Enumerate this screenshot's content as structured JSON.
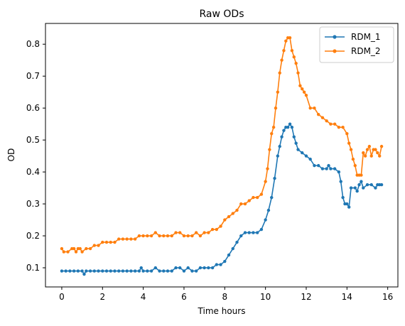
{
  "chart_data": {
    "type": "line",
    "title": "Raw ODs",
    "xlabel": "Time hours",
    "ylabel": "OD",
    "xlim": [
      -0.8,
      16.5
    ],
    "ylim": [
      0.04,
      0.865
    ],
    "xticks": [
      0,
      2,
      4,
      6,
      8,
      10,
      12,
      14,
      16
    ],
    "yticks": [
      0.1,
      0.2,
      0.3,
      0.4,
      0.5,
      0.6,
      0.7,
      0.8
    ],
    "legend": "top-right",
    "grid": false,
    "series": [
      {
        "name": "RDM_1",
        "color": "#1f77b4",
        "points": [
          [
            0,
            0.09
          ],
          [
            0.2,
            0.09
          ],
          [
            0.4,
            0.09
          ],
          [
            0.6,
            0.09
          ],
          [
            0.8,
            0.09
          ],
          [
            1.0,
            0.09
          ],
          [
            1.1,
            0.08
          ],
          [
            1.2,
            0.09
          ],
          [
            1.4,
            0.09
          ],
          [
            1.6,
            0.09
          ],
          [
            1.8,
            0.09
          ],
          [
            2.0,
            0.09
          ],
          [
            2.2,
            0.09
          ],
          [
            2.4,
            0.09
          ],
          [
            2.6,
            0.09
          ],
          [
            2.8,
            0.09
          ],
          [
            3.0,
            0.09
          ],
          [
            3.2,
            0.09
          ],
          [
            3.4,
            0.09
          ],
          [
            3.6,
            0.09
          ],
          [
            3.8,
            0.09
          ],
          [
            3.9,
            0.1
          ],
          [
            4.0,
            0.09
          ],
          [
            4.2,
            0.09
          ],
          [
            4.4,
            0.09
          ],
          [
            4.6,
            0.1
          ],
          [
            4.8,
            0.09
          ],
          [
            5.0,
            0.09
          ],
          [
            5.2,
            0.09
          ],
          [
            5.4,
            0.09
          ],
          [
            5.6,
            0.1
          ],
          [
            5.8,
            0.1
          ],
          [
            6.0,
            0.09
          ],
          [
            6.2,
            0.1
          ],
          [
            6.4,
            0.09
          ],
          [
            6.6,
            0.09
          ],
          [
            6.8,
            0.1
          ],
          [
            7.0,
            0.1
          ],
          [
            7.2,
            0.1
          ],
          [
            7.4,
            0.1
          ],
          [
            7.6,
            0.11
          ],
          [
            7.8,
            0.11
          ],
          [
            8.0,
            0.12
          ],
          [
            8.2,
            0.14
          ],
          [
            8.4,
            0.16
          ],
          [
            8.6,
            0.18
          ],
          [
            8.8,
            0.2
          ],
          [
            9.0,
            0.21
          ],
          [
            9.2,
            0.21
          ],
          [
            9.4,
            0.21
          ],
          [
            9.6,
            0.21
          ],
          [
            9.8,
            0.22
          ],
          [
            10.0,
            0.25
          ],
          [
            10.15,
            0.28
          ],
          [
            10.3,
            0.32
          ],
          [
            10.45,
            0.38
          ],
          [
            10.6,
            0.45
          ],
          [
            10.7,
            0.48
          ],
          [
            10.8,
            0.51
          ],
          [
            10.9,
            0.53
          ],
          [
            11.0,
            0.54
          ],
          [
            11.1,
            0.54
          ],
          [
            11.2,
            0.55
          ],
          [
            11.3,
            0.54
          ],
          [
            11.4,
            0.51
          ],
          [
            11.5,
            0.49
          ],
          [
            11.6,
            0.47
          ],
          [
            11.8,
            0.46
          ],
          [
            12.0,
            0.45
          ],
          [
            12.2,
            0.44
          ],
          [
            12.4,
            0.42
          ],
          [
            12.6,
            0.42
          ],
          [
            12.8,
            0.41
          ],
          [
            13.0,
            0.41
          ],
          [
            13.1,
            0.42
          ],
          [
            13.2,
            0.41
          ],
          [
            13.4,
            0.41
          ],
          [
            13.6,
            0.4
          ],
          [
            13.7,
            0.37
          ],
          [
            13.8,
            0.32
          ],
          [
            13.9,
            0.3
          ],
          [
            14.0,
            0.3
          ],
          [
            14.1,
            0.29
          ],
          [
            14.2,
            0.35
          ],
          [
            14.4,
            0.35
          ],
          [
            14.5,
            0.34
          ],
          [
            14.6,
            0.36
          ],
          [
            14.7,
            0.37
          ],
          [
            14.8,
            0.35
          ],
          [
            15.0,
            0.36
          ],
          [
            15.2,
            0.36
          ],
          [
            15.4,
            0.35
          ],
          [
            15.5,
            0.36
          ],
          [
            15.6,
            0.36
          ],
          [
            15.7,
            0.36
          ]
        ]
      },
      {
        "name": "RDM_2",
        "color": "#ff7f0e",
        "points": [
          [
            0,
            0.16
          ],
          [
            0.1,
            0.15
          ],
          [
            0.3,
            0.15
          ],
          [
            0.5,
            0.16
          ],
          [
            0.6,
            0.16
          ],
          [
            0.7,
            0.15
          ],
          [
            0.8,
            0.16
          ],
          [
            0.9,
            0.16
          ],
          [
            1.0,
            0.15
          ],
          [
            1.2,
            0.16
          ],
          [
            1.4,
            0.16
          ],
          [
            1.6,
            0.17
          ],
          [
            1.8,
            0.17
          ],
          [
            2.0,
            0.18
          ],
          [
            2.2,
            0.18
          ],
          [
            2.4,
            0.18
          ],
          [
            2.6,
            0.18
          ],
          [
            2.8,
            0.19
          ],
          [
            3.0,
            0.19
          ],
          [
            3.2,
            0.19
          ],
          [
            3.4,
            0.19
          ],
          [
            3.6,
            0.19
          ],
          [
            3.8,
            0.2
          ],
          [
            4.0,
            0.2
          ],
          [
            4.2,
            0.2
          ],
          [
            4.4,
            0.2
          ],
          [
            4.6,
            0.21
          ],
          [
            4.8,
            0.2
          ],
          [
            5.0,
            0.2
          ],
          [
            5.2,
            0.2
          ],
          [
            5.4,
            0.2
          ],
          [
            5.6,
            0.21
          ],
          [
            5.8,
            0.21
          ],
          [
            6.0,
            0.2
          ],
          [
            6.2,
            0.2
          ],
          [
            6.4,
            0.2
          ],
          [
            6.6,
            0.21
          ],
          [
            6.8,
            0.2
          ],
          [
            7.0,
            0.21
          ],
          [
            7.2,
            0.21
          ],
          [
            7.4,
            0.22
          ],
          [
            7.6,
            0.22
          ],
          [
            7.8,
            0.23
          ],
          [
            8.0,
            0.25
          ],
          [
            8.2,
            0.26
          ],
          [
            8.4,
            0.27
          ],
          [
            8.6,
            0.28
          ],
          [
            8.8,
            0.3
          ],
          [
            9.0,
            0.3
          ],
          [
            9.2,
            0.31
          ],
          [
            9.4,
            0.32
          ],
          [
            9.6,
            0.32
          ],
          [
            9.8,
            0.33
          ],
          [
            10.0,
            0.37
          ],
          [
            10.1,
            0.41
          ],
          [
            10.2,
            0.47
          ],
          [
            10.3,
            0.52
          ],
          [
            10.4,
            0.54
          ],
          [
            10.5,
            0.6
          ],
          [
            10.6,
            0.65
          ],
          [
            10.7,
            0.71
          ],
          [
            10.8,
            0.75
          ],
          [
            10.9,
            0.78
          ],
          [
            11.0,
            0.81
          ],
          [
            11.1,
            0.82
          ],
          [
            11.2,
            0.82
          ],
          [
            11.3,
            0.78
          ],
          [
            11.4,
            0.76
          ],
          [
            11.5,
            0.74
          ],
          [
            11.6,
            0.71
          ],
          [
            11.7,
            0.67
          ],
          [
            11.8,
            0.66
          ],
          [
            11.9,
            0.65
          ],
          [
            12.0,
            0.64
          ],
          [
            12.2,
            0.6
          ],
          [
            12.4,
            0.6
          ],
          [
            12.6,
            0.58
          ],
          [
            12.8,
            0.57
          ],
          [
            13.0,
            0.56
          ],
          [
            13.2,
            0.55
          ],
          [
            13.4,
            0.55
          ],
          [
            13.6,
            0.54
          ],
          [
            13.8,
            0.54
          ],
          [
            14.0,
            0.52
          ],
          [
            14.1,
            0.49
          ],
          [
            14.2,
            0.47
          ],
          [
            14.3,
            0.44
          ],
          [
            14.4,
            0.42
          ],
          [
            14.5,
            0.39
          ],
          [
            14.6,
            0.39
          ],
          [
            14.7,
            0.39
          ],
          [
            14.8,
            0.46
          ],
          [
            14.9,
            0.45
          ],
          [
            15.0,
            0.47
          ],
          [
            15.1,
            0.48
          ],
          [
            15.2,
            0.45
          ],
          [
            15.3,
            0.47
          ],
          [
            15.4,
            0.47
          ],
          [
            15.5,
            0.46
          ],
          [
            15.6,
            0.45
          ],
          [
            15.7,
            0.48
          ]
        ]
      }
    ]
  }
}
